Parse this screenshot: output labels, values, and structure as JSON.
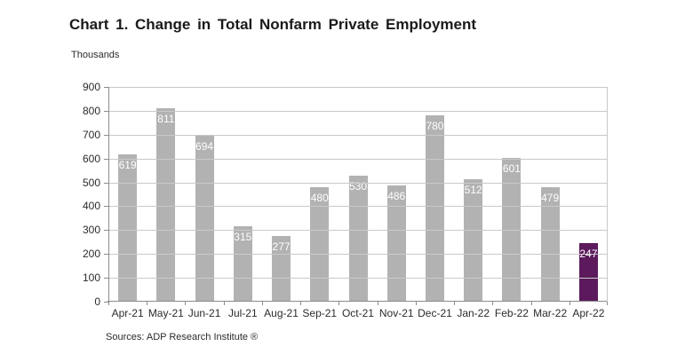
{
  "source": "Sources: ADP Research Institute ®",
  "colors": {
    "bar_default": "#b2b2b2",
    "bar_highlight": "#5c1a5c",
    "value_label_text": "#ffffff",
    "gridline": "#c9c9c9",
    "axis_line": "#8c8c8c",
    "text": "#2b2b2b",
    "title_text": "#1a1a1a",
    "background": "#ffffff"
  },
  "chart_data": {
    "type": "bar",
    "title": "Chart 1. Change in Total Nonfarm Private Employment",
    "ylabel": "Thousands",
    "xlabel": "",
    "categories": [
      "Apr-21",
      "May-21",
      "Jun-21",
      "Jul-21",
      "Aug-21",
      "Sep-21",
      "Oct-21",
      "Nov-21",
      "Dec-21",
      "Jan-22",
      "Feb-22",
      "Mar-22",
      "Apr-22"
    ],
    "values": [
      619,
      811,
      694,
      315,
      277,
      480,
      530,
      486,
      780,
      512,
      601,
      479,
      247
    ],
    "highlight_index": 12,
    "value_labels_position": "inside-top",
    "ylim": [
      0,
      900
    ],
    "ytick_step": 100,
    "yticks": [
      0,
      100,
      200,
      300,
      400,
      500,
      600,
      700,
      800,
      900
    ],
    "grid": true,
    "gridlines_over_bars": true,
    "legend": "none"
  }
}
